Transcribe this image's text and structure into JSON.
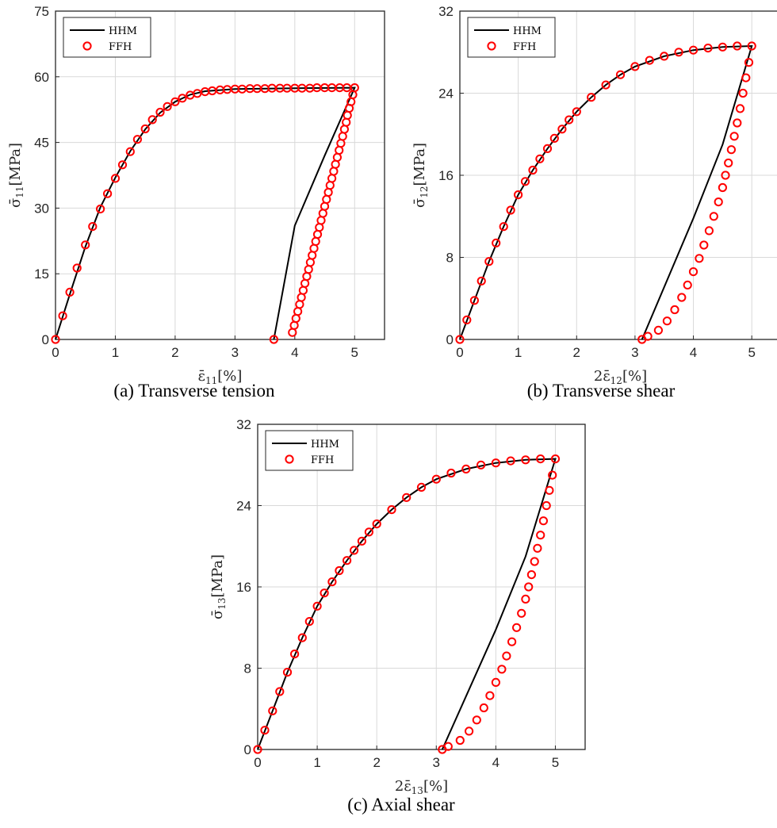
{
  "figure": {
    "colors": {
      "hhm_line": "#000000",
      "ffh_marker": "#ff0000",
      "grid": "#d9d9d9",
      "axes": "#262626"
    }
  },
  "chart_data": [
    {
      "id": "a",
      "type": "line",
      "caption": "(a) Transverse tension",
      "xlabel": {
        "prefix": "",
        "symbol": "ε̄",
        "sub": "11",
        "unit": "[%]"
      },
      "ylabel": {
        "symbol": "σ̄",
        "sub": "11",
        "unit": "[MPa]"
      },
      "xlim": [
        0,
        5.5
      ],
      "ylim": [
        0,
        75
      ],
      "xticks": [
        0,
        1,
        2,
        3,
        4,
        5
      ],
      "yticks": [
        0,
        15,
        30,
        45,
        60,
        75
      ],
      "grid": true,
      "legend_position": "top-left",
      "series": [
        {
          "name": "HHM",
          "style": "line",
          "points": [
            [
              0,
              0
            ],
            [
              0.25,
              10.8
            ],
            [
              0.5,
              21.2
            ],
            [
              0.75,
              30.2
            ],
            [
              1.0,
              37.0
            ],
            [
              1.25,
              43.0
            ],
            [
              1.5,
              48.0
            ],
            [
              1.75,
              51.8
            ],
            [
              2.0,
              54.3
            ],
            [
              2.25,
              55.9
            ],
            [
              2.5,
              56.7
            ],
            [
              3.0,
              57.2
            ],
            [
              4.0,
              57.4
            ],
            [
              5.0,
              57.5
            ],
            [
              4.5,
              42.0
            ],
            [
              4.0,
              26.0
            ],
            [
              3.65,
              0
            ]
          ]
        },
        {
          "name": "FFH",
          "style": "markers",
          "points": [
            [
              0,
              0
            ],
            [
              0.12,
              5.4
            ],
            [
              0.24,
              10.8
            ],
            [
              0.36,
              16.3
            ],
            [
              0.5,
              21.6
            ],
            [
              0.62,
              25.8
            ],
            [
              0.75,
              29.8
            ],
            [
              0.87,
              33.3
            ],
            [
              1.0,
              36.8
            ],
            [
              1.12,
              39.9
            ],
            [
              1.25,
              42.9
            ],
            [
              1.37,
              45.7
            ],
            [
              1.5,
              48.1
            ],
            [
              1.62,
              50.2
            ],
            [
              1.75,
              51.9
            ],
            [
              1.87,
              53.2
            ],
            [
              2.0,
              54.3
            ],
            [
              2.12,
              55.1
            ],
            [
              2.25,
              55.8
            ],
            [
              2.37,
              56.2
            ],
            [
              2.5,
              56.6
            ],
            [
              2.62,
              56.8
            ],
            [
              2.75,
              57.0
            ],
            [
              2.87,
              57.1
            ],
            [
              3.0,
              57.2
            ],
            [
              3.12,
              57.2
            ],
            [
              3.25,
              57.3
            ],
            [
              3.37,
              57.3
            ],
            [
              3.5,
              57.3
            ],
            [
              3.62,
              57.4
            ],
            [
              3.75,
              57.4
            ],
            [
              3.87,
              57.4
            ],
            [
              4.0,
              57.4
            ],
            [
              4.12,
              57.4
            ],
            [
              4.25,
              57.4
            ],
            [
              4.37,
              57.5
            ],
            [
              4.5,
              57.5
            ],
            [
              4.62,
              57.5
            ],
            [
              4.75,
              57.5
            ],
            [
              4.87,
              57.5
            ],
            [
              5.0,
              57.5
            ],
            [
              4.97,
              55.9
            ],
            [
              4.94,
              54.3
            ],
            [
              4.91,
              52.8
            ],
            [
              4.88,
              51.2
            ],
            [
              4.86,
              49.6
            ],
            [
              4.83,
              48.0
            ],
            [
              4.8,
              46.4
            ],
            [
              4.77,
              44.8
            ],
            [
              4.74,
              43.2
            ],
            [
              4.71,
              41.6
            ],
            [
              4.68,
              40.0
            ],
            [
              4.65,
              38.4
            ],
            [
              4.62,
              36.8
            ],
            [
              4.59,
              35.2
            ],
            [
              4.56,
              33.6
            ],
            [
              4.53,
              32.0
            ],
            [
              4.5,
              30.4
            ],
            [
              4.47,
              28.8
            ],
            [
              4.44,
              27.2
            ],
            [
              4.41,
              25.6
            ],
            [
              4.38,
              24.0
            ],
            [
              4.35,
              22.4
            ],
            [
              4.32,
              20.8
            ],
            [
              4.29,
              19.2
            ],
            [
              4.26,
              17.6
            ],
            [
              4.23,
              16.0
            ],
            [
              4.2,
              14.4
            ],
            [
              4.17,
              12.8
            ],
            [
              4.14,
              11.2
            ],
            [
              4.11,
              9.6
            ],
            [
              4.08,
              8.0
            ],
            [
              4.05,
              6.4
            ],
            [
              4.02,
              4.8
            ],
            [
              3.99,
              3.2
            ],
            [
              3.96,
              1.6
            ],
            [
              3.65,
              0
            ]
          ]
        }
      ]
    },
    {
      "id": "b",
      "type": "line",
      "caption": "(b) Transverse shear",
      "xlabel": {
        "prefix": "2",
        "symbol": "ε̄",
        "sub": "12",
        "unit": "[%]"
      },
      "ylabel": {
        "symbol": "σ̄",
        "sub": "12",
        "unit": "[MPa]"
      },
      "xlim": [
        0,
        5.5
      ],
      "ylim": [
        0,
        32
      ],
      "xticks": [
        0,
        1,
        2,
        3,
        4,
        5
      ],
      "yticks": [
        0,
        8,
        16,
        24,
        32
      ],
      "grid": true,
      "legend_position": "top-left",
      "series": [
        {
          "name": "HHM",
          "style": "line",
          "points": [
            [
              0,
              0
            ],
            [
              0.25,
              3.8
            ],
            [
              0.5,
              7.6
            ],
            [
              0.75,
              11.0
            ],
            [
              1.0,
              14.1
            ],
            [
              1.25,
              16.5
            ],
            [
              1.5,
              18.6
            ],
            [
              1.75,
              20.5
            ],
            [
              2.0,
              22.2
            ],
            [
              2.25,
              23.6
            ],
            [
              2.5,
              24.8
            ],
            [
              2.75,
              25.8
            ],
            [
              3.0,
              26.6
            ],
            [
              3.5,
              27.6
            ],
            [
              4.0,
              28.2
            ],
            [
              4.5,
              28.5
            ],
            [
              5.0,
              28.6
            ],
            [
              4.5,
              19.0
            ],
            [
              4.0,
              11.8
            ],
            [
              3.12,
              0
            ]
          ]
        },
        {
          "name": "FFH",
          "style": "markers",
          "points": [
            [
              0,
              0
            ],
            [
              0.12,
              1.9
            ],
            [
              0.25,
              3.8
            ],
            [
              0.37,
              5.7
            ],
            [
              0.5,
              7.6
            ],
            [
              0.62,
              9.4
            ],
            [
              0.75,
              11.0
            ],
            [
              0.87,
              12.6
            ],
            [
              1.0,
              14.1
            ],
            [
              1.12,
              15.4
            ],
            [
              1.25,
              16.5
            ],
            [
              1.37,
              17.6
            ],
            [
              1.5,
              18.6
            ],
            [
              1.62,
              19.6
            ],
            [
              1.75,
              20.5
            ],
            [
              1.87,
              21.4
            ],
            [
              2.0,
              22.2
            ],
            [
              2.25,
              23.6
            ],
            [
              2.5,
              24.8
            ],
            [
              2.75,
              25.8
            ],
            [
              3.0,
              26.6
            ],
            [
              3.25,
              27.2
            ],
            [
              3.5,
              27.6
            ],
            [
              3.75,
              28.0
            ],
            [
              4.0,
              28.2
            ],
            [
              4.25,
              28.4
            ],
            [
              4.5,
              28.5
            ],
            [
              4.75,
              28.6
            ],
            [
              5.0,
              28.6
            ],
            [
              4.95,
              27.0
            ],
            [
              4.9,
              25.5
            ],
            [
              4.85,
              24.0
            ],
            [
              4.8,
              22.5
            ],
            [
              4.75,
              21.1
            ],
            [
              4.7,
              19.8
            ],
            [
              4.65,
              18.5
            ],
            [
              4.6,
              17.2
            ],
            [
              4.55,
              16.0
            ],
            [
              4.5,
              14.8
            ],
            [
              4.43,
              13.4
            ],
            [
              4.35,
              12.0
            ],
            [
              4.27,
              10.6
            ],
            [
              4.18,
              9.2
            ],
            [
              4.1,
              7.9
            ],
            [
              4.0,
              6.6
            ],
            [
              3.9,
              5.3
            ],
            [
              3.8,
              4.1
            ],
            [
              3.68,
              2.9
            ],
            [
              3.55,
              1.8
            ],
            [
              3.4,
              0.9
            ],
            [
              3.22,
              0.3
            ],
            [
              3.12,
              0
            ]
          ]
        }
      ]
    },
    {
      "id": "c",
      "type": "line",
      "caption": "(c) Axial shear",
      "xlabel": {
        "prefix": "2",
        "symbol": "ε̄",
        "sub": "13",
        "unit": "[%]"
      },
      "ylabel": {
        "symbol": "σ̄",
        "sub": "13",
        "unit": "[MPa]"
      },
      "xlim": [
        0,
        5.5
      ],
      "ylim": [
        0,
        32
      ],
      "xticks": [
        0,
        1,
        2,
        3,
        4,
        5
      ],
      "yticks": [
        0,
        8,
        16,
        24,
        32
      ],
      "grid": true,
      "legend_position": "top-left",
      "series": [
        {
          "name": "HHM",
          "style": "line",
          "points": [
            [
              0,
              0
            ],
            [
              0.25,
              3.8
            ],
            [
              0.5,
              7.6
            ],
            [
              0.75,
              11.0
            ],
            [
              1.0,
              14.1
            ],
            [
              1.25,
              16.5
            ],
            [
              1.5,
              18.6
            ],
            [
              1.75,
              20.5
            ],
            [
              2.0,
              22.2
            ],
            [
              2.25,
              23.6
            ],
            [
              2.5,
              24.8
            ],
            [
              2.75,
              25.8
            ],
            [
              3.0,
              26.6
            ],
            [
              3.5,
              27.6
            ],
            [
              4.0,
              28.2
            ],
            [
              4.5,
              28.5
            ],
            [
              5.0,
              28.6
            ],
            [
              4.5,
              19.0
            ],
            [
              4.0,
              11.8
            ],
            [
              3.1,
              0
            ]
          ]
        },
        {
          "name": "FFH",
          "style": "markers",
          "points": [
            [
              0,
              0
            ],
            [
              0.12,
              1.9
            ],
            [
              0.25,
              3.8
            ],
            [
              0.37,
              5.7
            ],
            [
              0.5,
              7.6
            ],
            [
              0.62,
              9.4
            ],
            [
              0.75,
              11.0
            ],
            [
              0.87,
              12.6
            ],
            [
              1.0,
              14.1
            ],
            [
              1.12,
              15.4
            ],
            [
              1.25,
              16.5
            ],
            [
              1.37,
              17.6
            ],
            [
              1.5,
              18.6
            ],
            [
              1.62,
              19.6
            ],
            [
              1.75,
              20.5
            ],
            [
              1.87,
              21.4
            ],
            [
              2.0,
              22.2
            ],
            [
              2.25,
              23.6
            ],
            [
              2.5,
              24.8
            ],
            [
              2.75,
              25.8
            ],
            [
              3.0,
              26.6
            ],
            [
              3.25,
              27.2
            ],
            [
              3.5,
              27.6
            ],
            [
              3.75,
              28.0
            ],
            [
              4.0,
              28.2
            ],
            [
              4.25,
              28.4
            ],
            [
              4.5,
              28.5
            ],
            [
              4.75,
              28.6
            ],
            [
              5.0,
              28.6
            ],
            [
              4.95,
              27.0
            ],
            [
              4.9,
              25.5
            ],
            [
              4.85,
              24.0
            ],
            [
              4.8,
              22.5
            ],
            [
              4.75,
              21.1
            ],
            [
              4.7,
              19.8
            ],
            [
              4.65,
              18.5
            ],
            [
              4.6,
              17.2
            ],
            [
              4.55,
              16.0
            ],
            [
              4.5,
              14.8
            ],
            [
              4.43,
              13.4
            ],
            [
              4.35,
              12.0
            ],
            [
              4.27,
              10.6
            ],
            [
              4.18,
              9.2
            ],
            [
              4.1,
              7.9
            ],
            [
              4.0,
              6.6
            ],
            [
              3.9,
              5.3
            ],
            [
              3.8,
              4.1
            ],
            [
              3.68,
              2.9
            ],
            [
              3.55,
              1.8
            ],
            [
              3.4,
              0.9
            ],
            [
              3.2,
              0.3
            ],
            [
              3.1,
              0
            ]
          ]
        }
      ]
    }
  ]
}
